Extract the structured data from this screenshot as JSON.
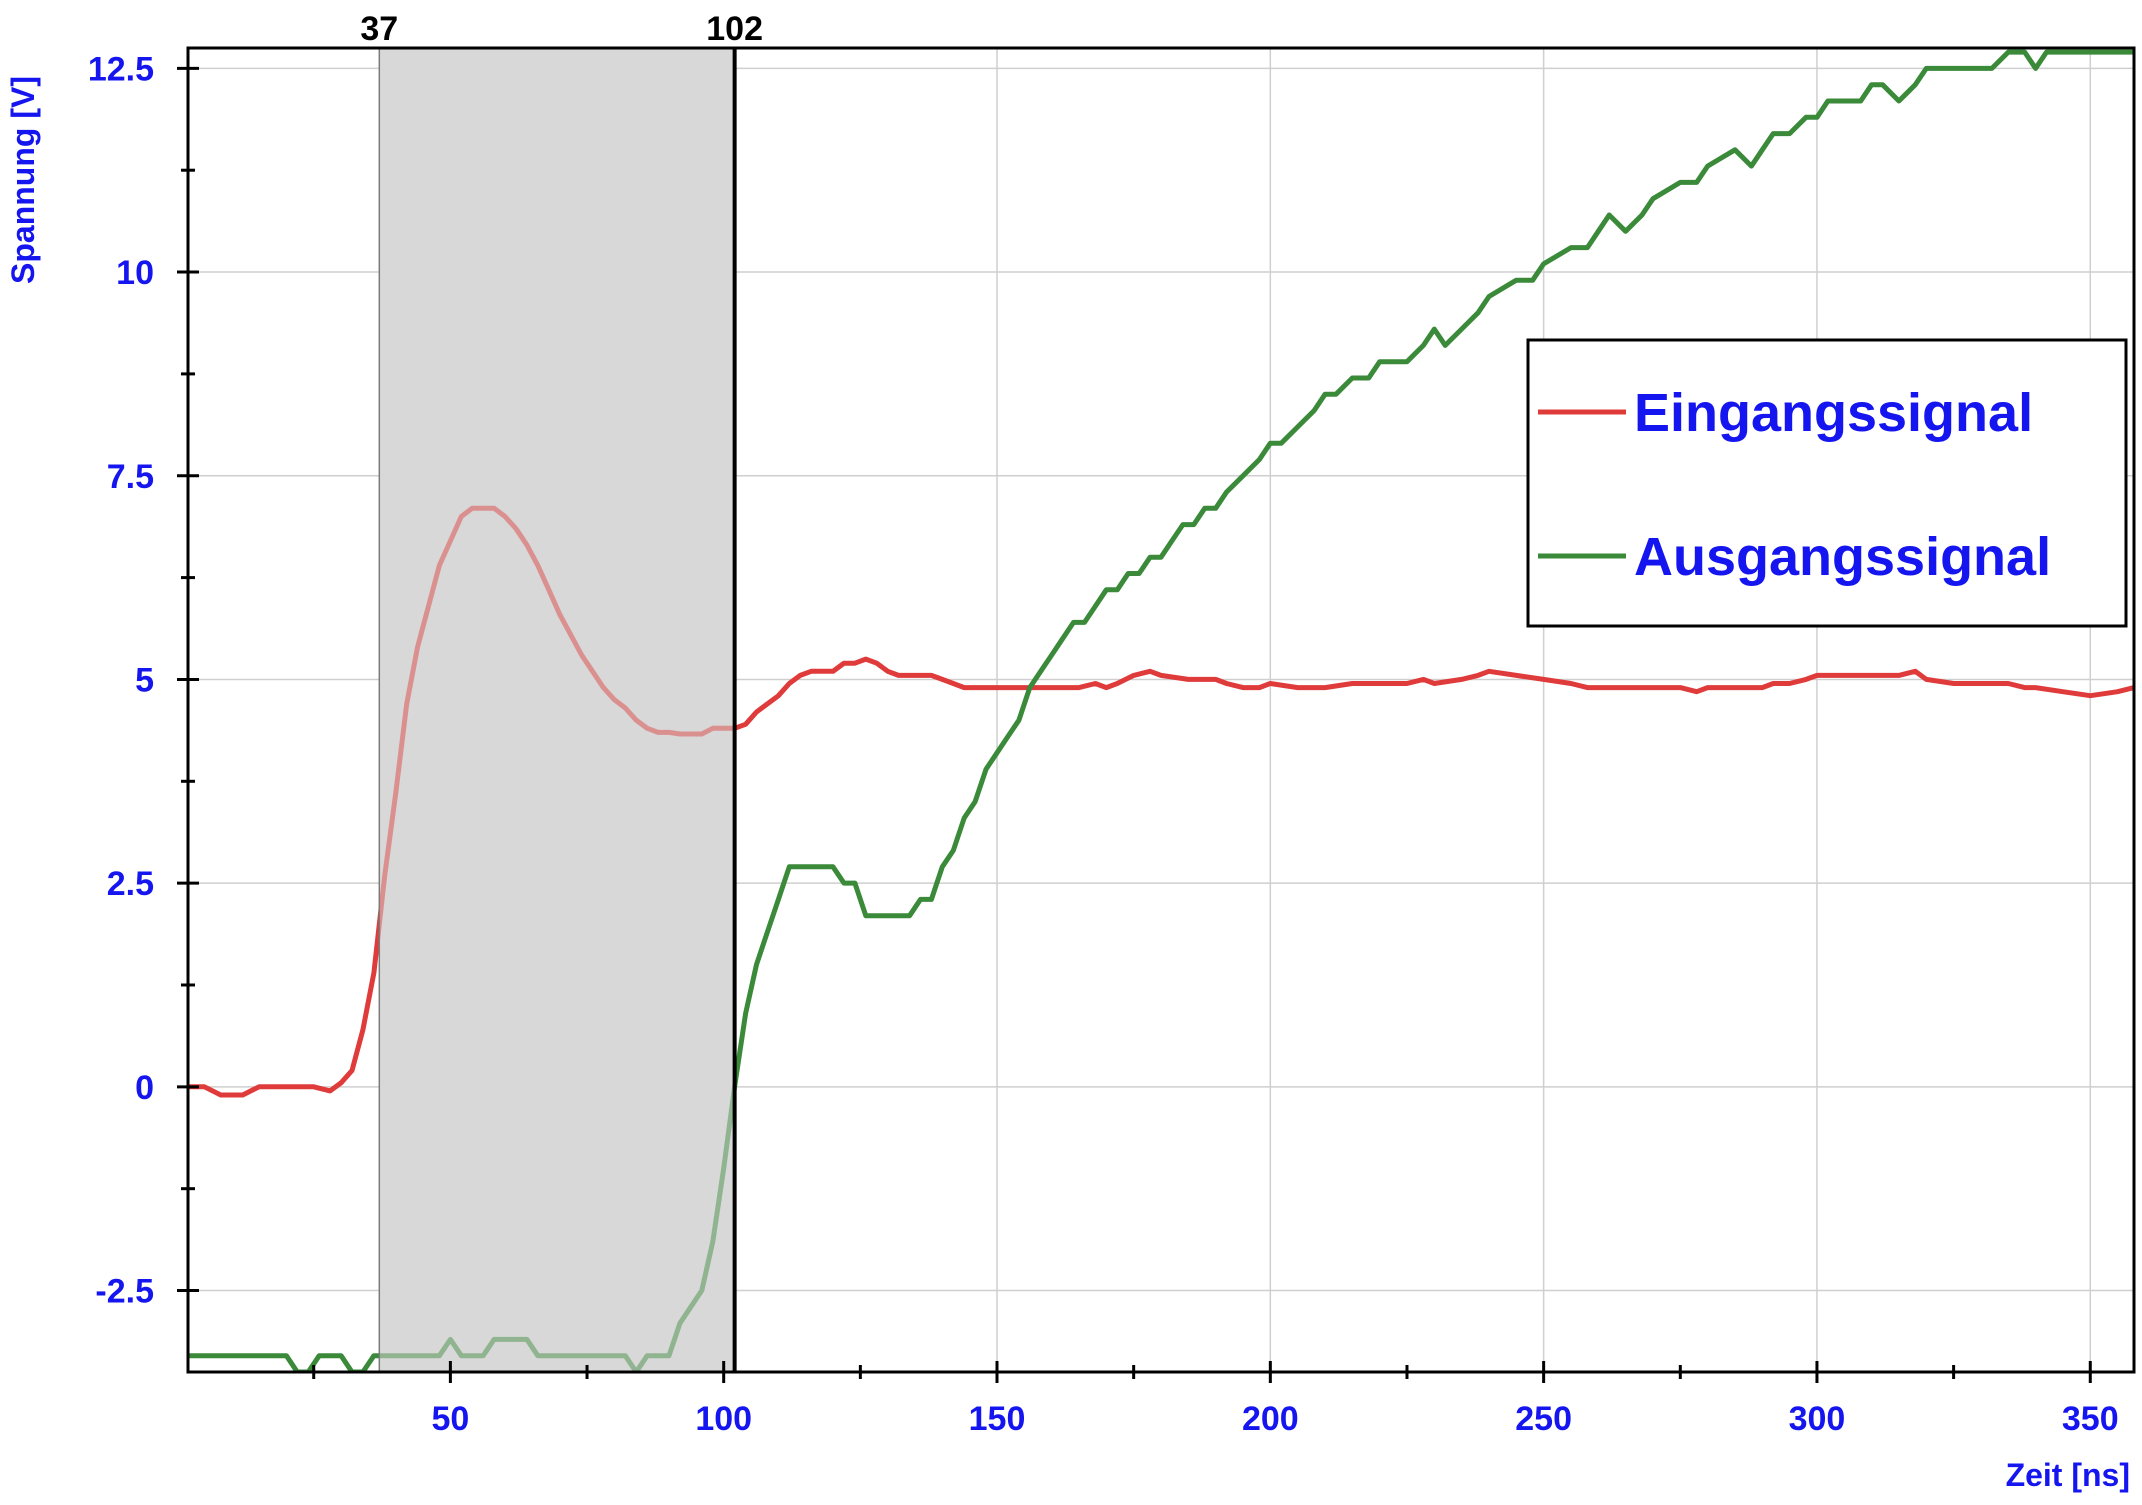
{
  "chart_data": {
    "type": "line",
    "title": "",
    "xlabel": "Zeit [ns]",
    "ylabel": "Spannung [V]",
    "xlim": [
      2,
      358
    ],
    "ylim": [
      -3.5,
      12.75
    ],
    "x_ticks": [
      50,
      100,
      150,
      200,
      250,
      300,
      350
    ],
    "y_ticks": [
      -2.5,
      0,
      2.5,
      5,
      7.5,
      10,
      12.5
    ],
    "x_tick_labels": [
      "50",
      "100",
      "150",
      "200",
      "250",
      "300",
      "350"
    ],
    "y_tick_labels": [
      "-2.5",
      "0",
      "2.5",
      "5",
      "7.5",
      "10",
      "12.5"
    ],
    "grid": true,
    "legend_position": "right",
    "highlight_region": {
      "x_start": 37,
      "x_end": 102,
      "start_label": "37",
      "end_label": "102",
      "fill_color": "#d9d9d9"
    },
    "series": [
      {
        "name": "Eingangssignal",
        "color": "#e03b3b",
        "x": [
          2,
          5,
          8,
          10,
          12,
          15,
          18,
          20,
          22,
          25,
          28,
          30,
          32,
          34,
          36,
          38,
          40,
          42,
          44,
          46,
          48,
          50,
          52,
          54,
          56,
          58,
          60,
          62,
          64,
          66,
          68,
          70,
          72,
          74,
          76,
          78,
          80,
          82,
          84,
          86,
          88,
          90,
          92,
          94,
          96,
          98,
          100,
          102,
          104,
          106,
          108,
          110,
          112,
          114,
          116,
          118,
          120,
          122,
          124,
          126,
          128,
          130,
          132,
          134,
          136,
          138,
          140,
          142,
          144,
          146,
          150,
          155,
          160,
          165,
          168,
          170,
          172,
          175,
          178,
          180,
          185,
          190,
          192,
          195,
          198,
          200,
          205,
          210,
          215,
          220,
          225,
          228,
          230,
          235,
          238,
          240,
          245,
          250,
          255,
          258,
          260,
          265,
          270,
          275,
          278,
          280,
          285,
          290,
          292,
          295,
          298,
          300,
          305,
          310,
          315,
          318,
          320,
          325,
          330,
          335,
          338,
          340,
          345,
          350,
          355,
          358
        ],
        "y": [
          0,
          0,
          -0.1,
          -0.1,
          -0.1,
          0,
          0,
          0,
          0,
          0,
          -0.05,
          0.05,
          0.2,
          0.7,
          1.4,
          2.6,
          3.6,
          4.7,
          5.4,
          5.9,
          6.4,
          6.7,
          7.0,
          7.1,
          7.1,
          7.1,
          7.0,
          6.85,
          6.65,
          6.4,
          6.1,
          5.8,
          5.55,
          5.3,
          5.1,
          4.9,
          4.75,
          4.65,
          4.5,
          4.4,
          4.35,
          4.35,
          4.33,
          4.33,
          4.33,
          4.4,
          4.4,
          4.4,
          4.45,
          4.6,
          4.7,
          4.8,
          4.95,
          5.05,
          5.1,
          5.1,
          5.1,
          5.2,
          5.2,
          5.25,
          5.2,
          5.1,
          5.05,
          5.05,
          5.05,
          5.05,
          5.0,
          4.95,
          4.9,
          4.9,
          4.9,
          4.9,
          4.9,
          4.9,
          4.95,
          4.9,
          4.95,
          5.05,
          5.1,
          5.05,
          5.0,
          5.0,
          4.95,
          4.9,
          4.9,
          4.95,
          4.9,
          4.9,
          4.95,
          4.95,
          4.95,
          5.0,
          4.95,
          5.0,
          5.05,
          5.1,
          5.05,
          5.0,
          4.95,
          4.9,
          4.9,
          4.9,
          4.9,
          4.9,
          4.85,
          4.9,
          4.9,
          4.9,
          4.95,
          4.95,
          5.0,
          5.05,
          5.05,
          5.05,
          5.05,
          5.1,
          5.0,
          4.95,
          4.95,
          4.95,
          4.9,
          4.9,
          4.85,
          4.8,
          4.85,
          4.9
        ]
      },
      {
        "name": "Ausgangssignal",
        "color": "#3a8a3a",
        "x": [
          2,
          10,
          18,
          20,
          22,
          24,
          26,
          28,
          30,
          32,
          34,
          36,
          40,
          46,
          48,
          50,
          52,
          54,
          56,
          58,
          60,
          62,
          64,
          66,
          68,
          70,
          72,
          74,
          76,
          78,
          80,
          82,
          84,
          86,
          88,
          90,
          92,
          94,
          96,
          98,
          100,
          102,
          104,
          106,
          108,
          110,
          112,
          114,
          116,
          118,
          120,
          122,
          124,
          126,
          128,
          130,
          132,
          134,
          136,
          138,
          140,
          142,
          144,
          146,
          148,
          150,
          152,
          154,
          156,
          158,
          160,
          162,
          164,
          166,
          168,
          170,
          172,
          174,
          176,
          178,
          180,
          182,
          184,
          186,
          188,
          190,
          192,
          195,
          198,
          200,
          202,
          205,
          208,
          210,
          212,
          215,
          218,
          220,
          225,
          228,
          230,
          232,
          235,
          238,
          240,
          245,
          248,
          250,
          255,
          258,
          260,
          262,
          265,
          268,
          270,
          275,
          278,
          280,
          285,
          288,
          290,
          292,
          295,
          298,
          300,
          302,
          305,
          308,
          310,
          312,
          315,
          318,
          320,
          322,
          325,
          328,
          330,
          332,
          335,
          338,
          340,
          342,
          345,
          348,
          350,
          352,
          355,
          358
        ],
        "y": [
          -3.3,
          -3.3,
          -3.3,
          -3.3,
          -3.5,
          -3.5,
          -3.3,
          -3.3,
          -3.3,
          -3.5,
          -3.5,
          -3.3,
          -3.3,
          -3.3,
          -3.3,
          -3.1,
          -3.3,
          -3.3,
          -3.3,
          -3.1,
          -3.1,
          -3.1,
          -3.1,
          -3.3,
          -3.3,
          -3.3,
          -3.3,
          -3.3,
          -3.3,
          -3.3,
          -3.3,
          -3.3,
          -3.5,
          -3.3,
          -3.3,
          -3.3,
          -2.9,
          -2.7,
          -2.5,
          -1.9,
          -1.0,
          0.0,
          0.9,
          1.5,
          1.9,
          2.3,
          2.7,
          2.7,
          2.7,
          2.7,
          2.7,
          2.5,
          2.5,
          2.1,
          2.1,
          2.1,
          2.1,
          2.1,
          2.3,
          2.3,
          2.7,
          2.9,
          3.3,
          3.5,
          3.9,
          4.1,
          4.3,
          4.5,
          4.9,
          5.1,
          5.3,
          5.5,
          5.7,
          5.7,
          5.9,
          6.1,
          6.1,
          6.3,
          6.3,
          6.5,
          6.5,
          6.7,
          6.9,
          6.9,
          7.1,
          7.1,
          7.3,
          7.5,
          7.7,
          7.9,
          7.9,
          8.1,
          8.3,
          8.5,
          8.5,
          8.7,
          8.7,
          8.9,
          8.9,
          9.1,
          9.3,
          9.1,
          9.3,
          9.5,
          9.7,
          9.9,
          9.9,
          10.1,
          10.3,
          10.3,
          10.5,
          10.7,
          10.5,
          10.7,
          10.9,
          11.1,
          11.1,
          11.3,
          11.5,
          11.3,
          11.5,
          11.7,
          11.7,
          11.9,
          11.9,
          12.1,
          12.1,
          12.1,
          12.3,
          12.3,
          12.1,
          12.3,
          12.5,
          12.5,
          12.5,
          12.5,
          12.5,
          12.5,
          12.7,
          12.7,
          12.5,
          12.7,
          12.7,
          12.7,
          12.7,
          12.7,
          12.7,
          12.7
        ]
      }
    ]
  }
}
